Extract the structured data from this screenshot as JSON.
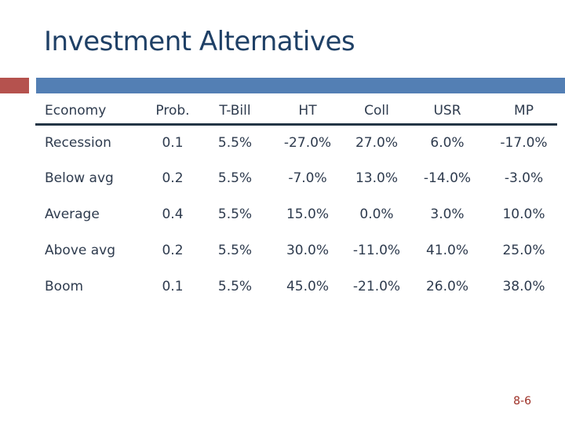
{
  "slide": {
    "title": "Investment Alternatives",
    "page_number": "8-6"
  },
  "table": {
    "columns": [
      "Economy",
      "Prob.",
      "T-Bill",
      "HT",
      "Coll",
      "USR",
      "MP"
    ],
    "rows": [
      [
        "Recession",
        "0.1",
        "5.5%",
        "-27.0%",
        "27.0%",
        "6.0%",
        "-17.0%"
      ],
      [
        "Below avg",
        "0.2",
        "5.5%",
        "-7.0%",
        "13.0%",
        "-14.0%",
        "-3.0%"
      ],
      [
        "Average",
        "0.4",
        "5.5%",
        "15.0%",
        "0.0%",
        "3.0%",
        "10.0%"
      ],
      [
        "Above avg",
        "0.2",
        "5.5%",
        "30.0%",
        "-11.0%",
        "41.0%",
        "25.0%"
      ],
      [
        "Boom",
        "0.1",
        "5.5%",
        "45.0%",
        "-21.0%",
        "26.0%",
        "38.0%"
      ]
    ]
  },
  "colors": {
    "title_text": "#1F4066",
    "table_text": "#2E3B4E",
    "header_rule": "#243546",
    "accent_bar_blue": "#537FB4",
    "accent_square_red": "#B5524E",
    "page_number_red": "#9C2D23"
  }
}
